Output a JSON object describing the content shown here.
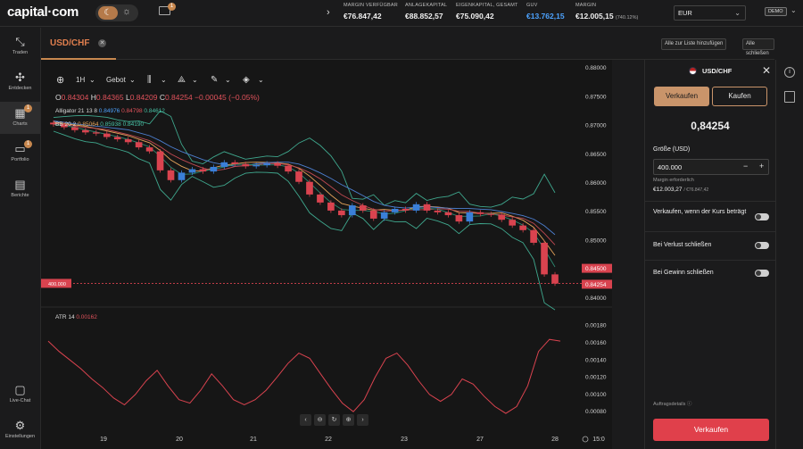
{
  "header": {
    "logo": "capital·com",
    "notification_count": "1",
    "metrics": [
      {
        "label": "MARGIN VERFÜGBAR",
        "value": "€76.847,42"
      },
      {
        "label": "ANLAGEKAPITAL",
        "value": "€88.852,57"
      },
      {
        "label": "EIGENKAPITAL, GESAMT",
        "value": "€75.090,42"
      },
      {
        "label": "GUV",
        "value": "€13.762,15"
      },
      {
        "label": "MARGIN",
        "value": "€12.005,15",
        "sub": "(740.12%)"
      }
    ],
    "currency": "EUR",
    "account_mode": "DEMO"
  },
  "nav": [
    {
      "label": "Traden",
      "icon": "trade-icon"
    },
    {
      "label": "Entdecken",
      "icon": "discover-icon"
    },
    {
      "label": "Charts",
      "icon": "charts-icon",
      "badge": "1"
    },
    {
      "label": "Portfolio",
      "icon": "portfolio-icon",
      "badge": "1"
    },
    {
      "label": "Berichte",
      "icon": "reports-icon"
    },
    {
      "label": "Live-Chat",
      "icon": "chat-icon"
    },
    {
      "label": "Einstellungen",
      "icon": "settings-icon"
    }
  ],
  "tabs": {
    "active": "USD/CHF",
    "add_all": "Alle zur Liste hinzufügen",
    "close_all": "Alle schließen"
  },
  "toolbar": {
    "interval": "1H",
    "price_type": "Gebot"
  },
  "ohlc": {
    "o_label": "O",
    "o": "0.84304",
    "h_label": "H",
    "h": "0.84365",
    "l_label": "L",
    "l": "0.84209",
    "c_label": "C",
    "c": "0.84254",
    "change": "−0.00045 (−0.05%)"
  },
  "indicators": {
    "alligator_label": "Alligator 21 13 8",
    "alligator_values": [
      "0.84976",
      "0.84798",
      "0.84612"
    ],
    "bb_label": "BB 20 2",
    "bb_values": [
      "0.85064",
      "0.85938",
      "0.84190"
    ],
    "atr_label": "ATR 14",
    "atr_value": "0.00162"
  },
  "chart_data": [
    {
      "type": "candlestick",
      "title": "USD/CHF",
      "x_ticks": [
        "19",
        "20",
        "21",
        "22",
        "23",
        "27",
        "28",
        "15:0"
      ],
      "y_ticks": [
        "0.88000",
        "0.87500",
        "0.87000",
        "0.86500",
        "0.86000",
        "0.85500",
        "0.85000",
        "0.84500",
        "0.84000"
      ],
      "ylim": [
        0.8395,
        0.8805
      ],
      "position_line_label": "400.000",
      "price_labels": [
        "0.84500",
        "0.84254"
      ],
      "close_series": [
        0.8702,
        0.8697,
        0.8692,
        0.8688,
        0.8686,
        0.868,
        0.8676,
        0.8671,
        0.8662,
        0.8655,
        0.8622,
        0.8605,
        0.8618,
        0.8624,
        0.862,
        0.8628,
        0.8636,
        0.8633,
        0.8629,
        0.8631,
        0.8634,
        0.863,
        0.862,
        0.8602,
        0.858,
        0.8566,
        0.8552,
        0.8544,
        0.8561,
        0.8552,
        0.8538,
        0.8549,
        0.8555,
        0.8552,
        0.8563,
        0.8552,
        0.8549,
        0.8544,
        0.8533,
        0.8549,
        0.8546,
        0.8545,
        0.8536,
        0.8526,
        0.8518,
        0.8496,
        0.8441,
        0.8425
      ]
    },
    {
      "type": "line",
      "title": "ATR 14",
      "y_ticks": [
        "0.00180",
        "0.00160",
        "0.00140",
        "0.00120",
        "0.00100",
        "0.00080"
      ],
      "ylim": [
        0.00074,
        0.00188
      ],
      "values": [
        0.00162,
        0.0015,
        0.0014,
        0.0013,
        0.00118,
        0.00108,
        0.00096,
        0.00088,
        0.001,
        0.00116,
        0.00128,
        0.0011,
        0.00094,
        0.0009,
        0.00105,
        0.00124,
        0.0011,
        0.00094,
        0.00088,
        0.00094,
        0.00105,
        0.0012,
        0.00136,
        0.00148,
        0.00142,
        0.00124,
        0.00106,
        0.0009,
        0.0008,
        0.00094,
        0.0012,
        0.00142,
        0.00148,
        0.00134,
        0.00116,
        0.001,
        0.00092,
        0.001,
        0.00118,
        0.00112,
        0.00098,
        0.00086,
        0.00078,
        0.00086,
        0.0011,
        0.0015,
        0.00164,
        0.00162
      ]
    }
  ],
  "order": {
    "symbol": "USD/CHF",
    "sell": "Verkaufen",
    "buy": "Kaufen",
    "price": "0,84254",
    "size_label": "Größe (USD)",
    "size_value": "400.000",
    "margin_label": "Margin erforderlich",
    "margin_value": "€12.003,27",
    "margin_sub": "/ €76.847,42",
    "opt_limit": "Verkaufen, wenn der Kurs beträgt",
    "opt_stop": "Bei Verlust schließen",
    "opt_tp": "Bei Gewinn schließen",
    "details": "Auftragsdetails",
    "submit": "Verkaufen"
  }
}
